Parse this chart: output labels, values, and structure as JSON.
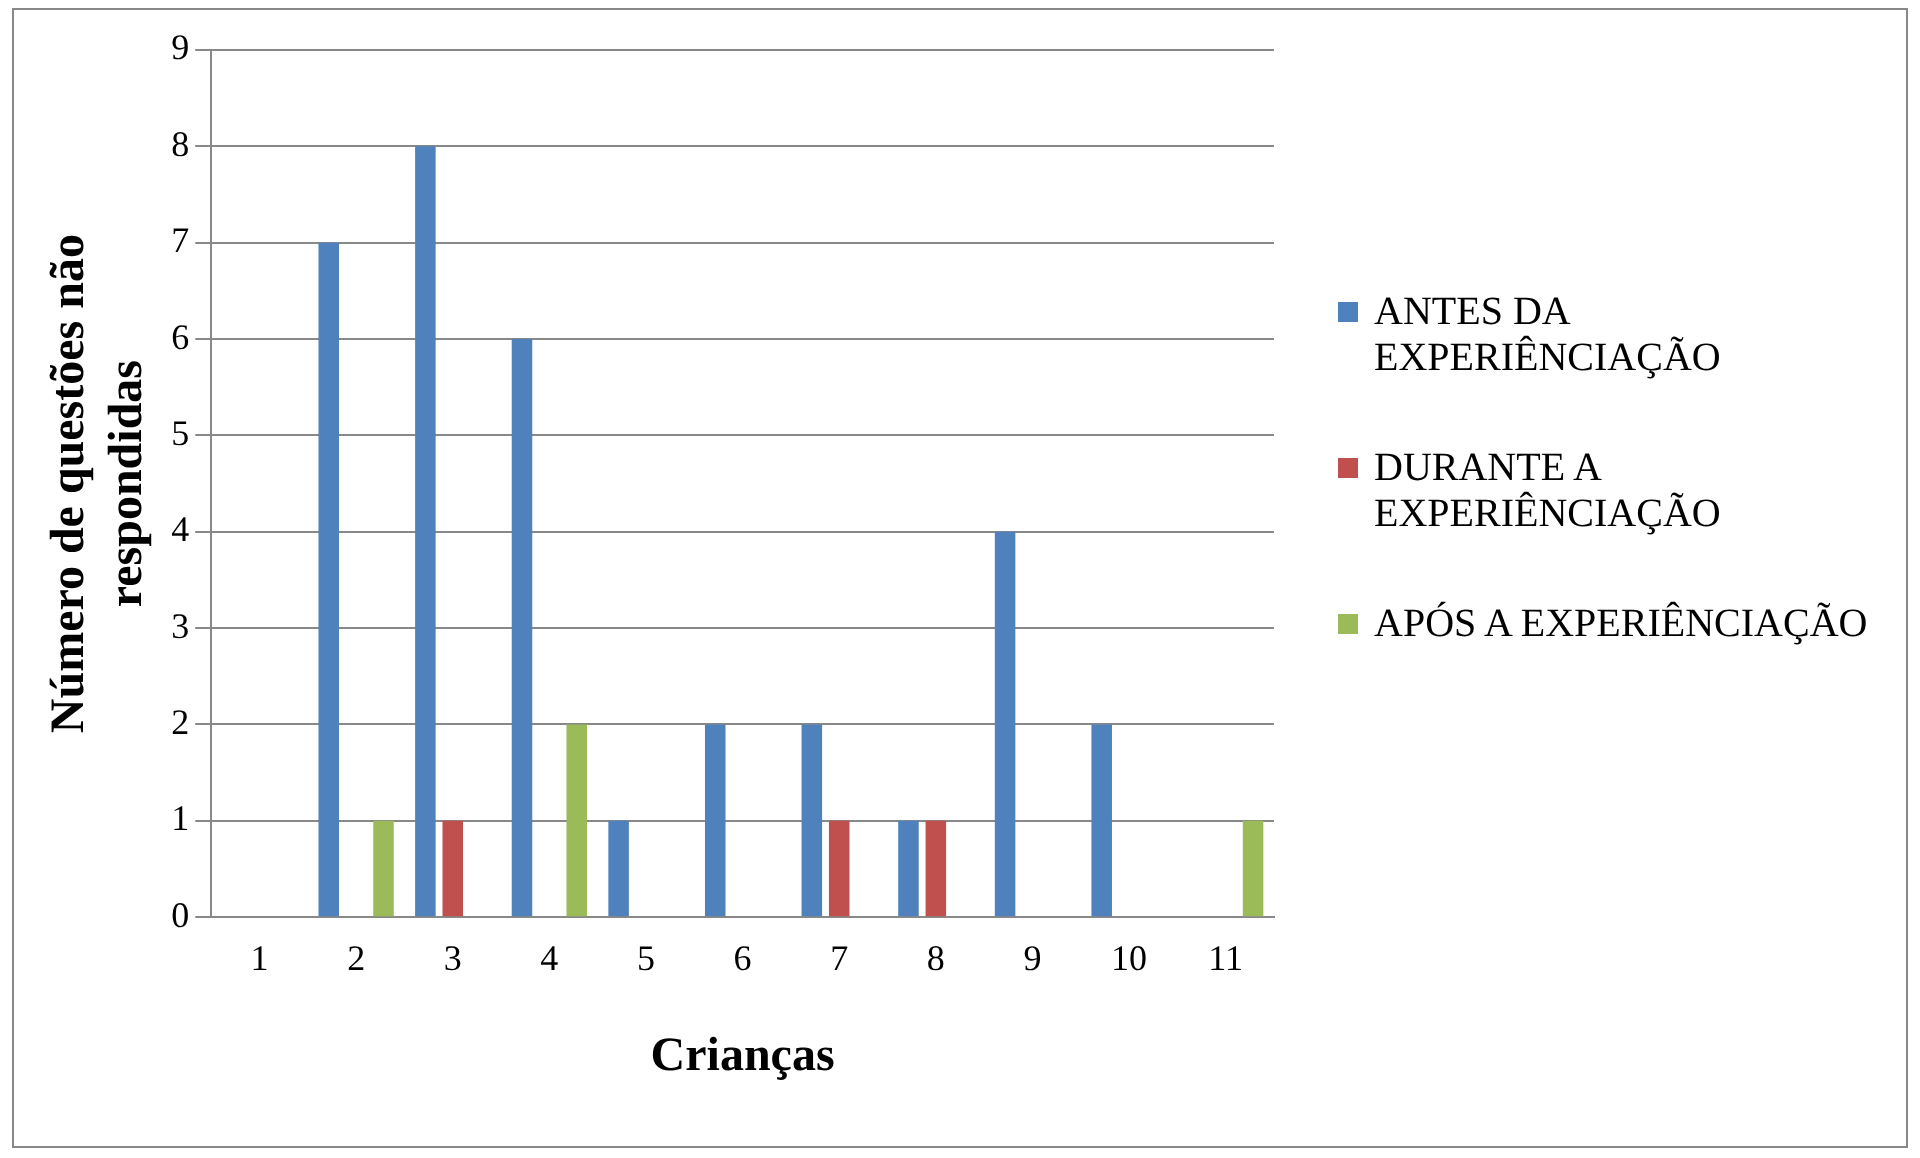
{
  "chart_data": {
    "type": "bar",
    "xlabel": "Crianças",
    "ylabel": "Número de questões não respondidas",
    "categories": [
      "1",
      "2",
      "3",
      "4",
      "5",
      "6",
      "7",
      "8",
      "9",
      "10",
      "11"
    ],
    "series": [
      {
        "name": "ANTES DA EXPERIÊNCIAÇÃO",
        "color": "#4f81bd",
        "values": [
          0,
          7,
          8,
          6,
          1,
          2,
          2,
          1,
          4,
          2,
          0
        ]
      },
      {
        "name": "DURANTE A EXPERIÊNCIAÇÃO",
        "color": "#c0504d",
        "values": [
          0,
          0,
          1,
          0,
          0,
          0,
          1,
          1,
          0,
          0,
          0
        ]
      },
      {
        "name": "APÓS A EXPERIÊNCIAÇÃO",
        "color": "#9bbb59",
        "values": [
          0,
          1,
          0,
          2,
          0,
          0,
          0,
          0,
          0,
          0,
          1
        ]
      }
    ],
    "ylim": [
      0,
      9
    ],
    "yticks": [
      0,
      1,
      2,
      3,
      4,
      5,
      6,
      7,
      8,
      9
    ],
    "grid": "y",
    "legend": "right"
  }
}
